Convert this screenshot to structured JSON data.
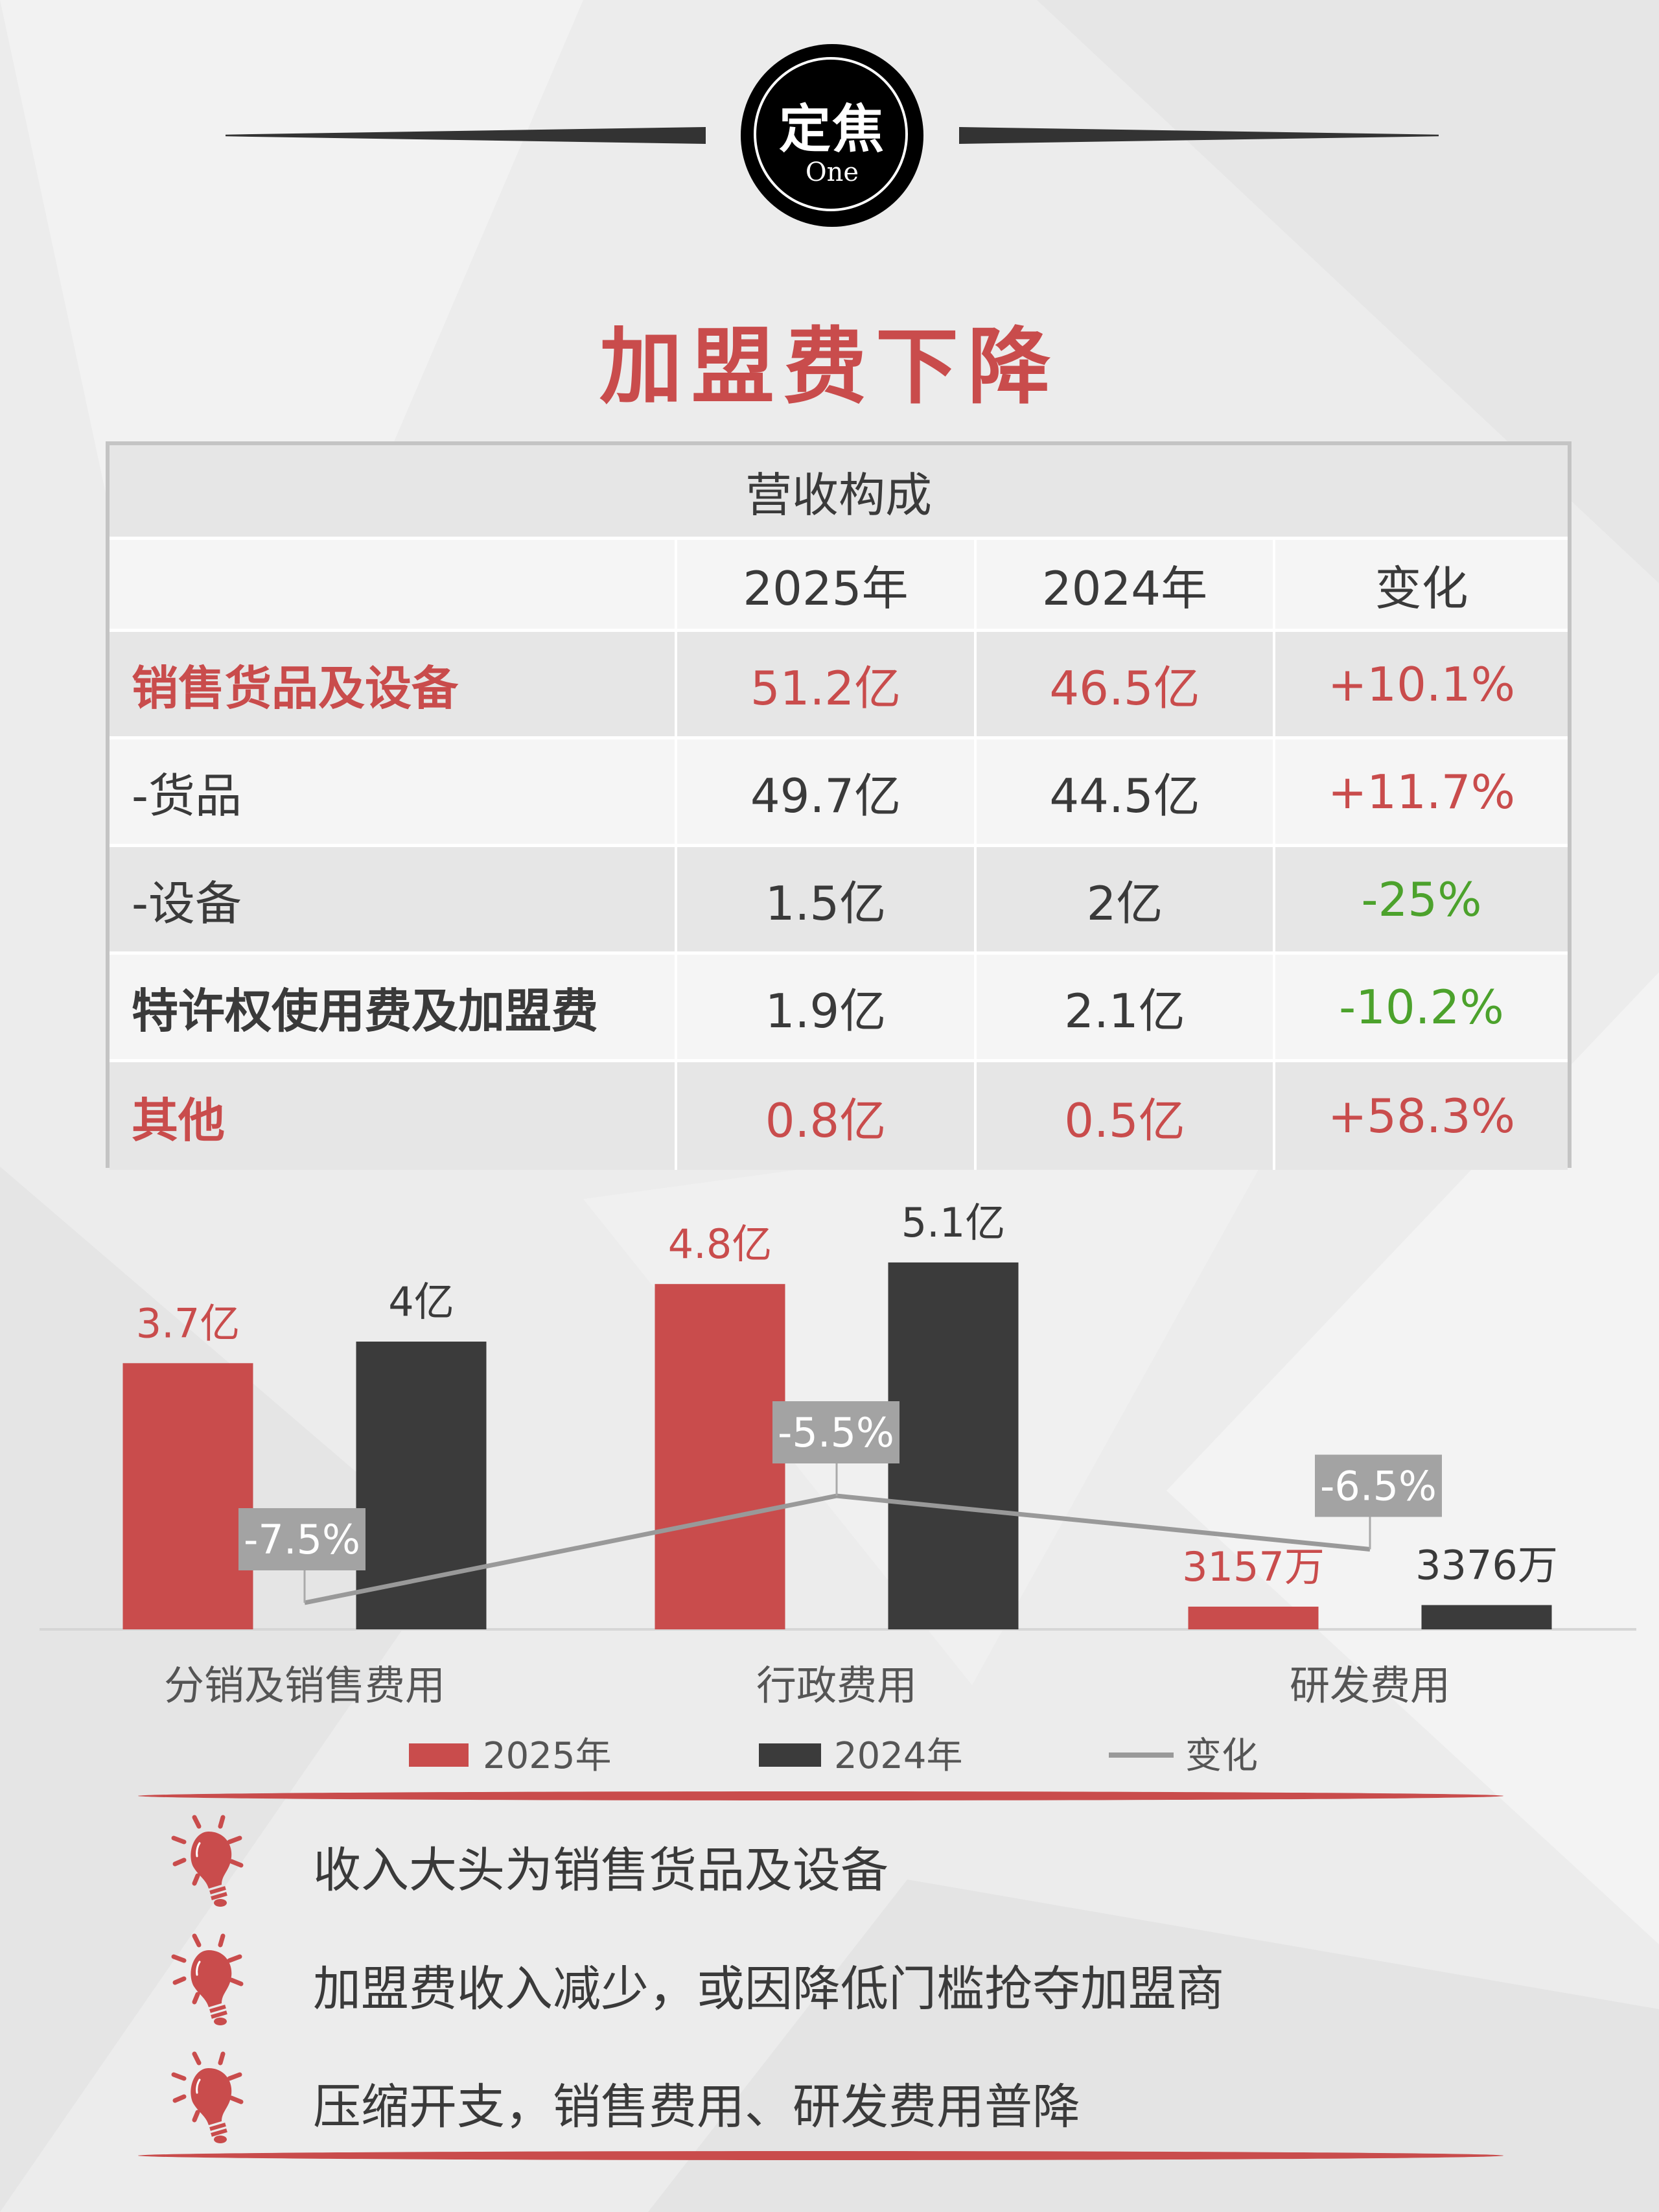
{
  "badge": {
    "main": "定焦",
    "sub": "One"
  },
  "title": "加盟费下降",
  "table": {
    "caption": "营收构成",
    "headers": [
      "",
      "2025年",
      "2024年",
      "变化"
    ],
    "rows": [
      {
        "label": "销售货品及设备",
        "y2025": "51.2亿",
        "y2024": "46.5亿",
        "change": "+10.1%",
        "highlight": true,
        "trend": "up"
      },
      {
        "label": "-货品",
        "y2025": "49.7亿",
        "y2024": "44.5亿",
        "change": "+11.7%",
        "highlight": false,
        "trend": "up"
      },
      {
        "label": "-设备",
        "y2025": "1.5亿",
        "y2024": "2亿",
        "change": "-25%",
        "highlight": false,
        "trend": "down"
      },
      {
        "label": "特许权使用费及加盟费",
        "y2025": "1.9亿",
        "y2024": "2.1亿",
        "change": "-10.2%",
        "highlight": false,
        "trend": "down",
        "bold": true
      },
      {
        "label": "其他",
        "y2025": "0.8亿",
        "y2024": "0.5亿",
        "change": "+58.3%",
        "highlight": true,
        "trend": "up"
      }
    ]
  },
  "chart_data": {
    "type": "bar",
    "categories": [
      "分销及销售费用",
      "行政费用",
      "研发费用"
    ],
    "series": [
      {
        "name": "2025年",
        "values": [
          3.7,
          4.8,
          0.3157
        ],
        "labels": [
          "3.7亿",
          "4.8亿",
          "3157万"
        ],
        "color": "#c94c4c",
        "unit": "亿"
      },
      {
        "name": "2024年",
        "values": [
          4.0,
          5.1,
          0.3376
        ],
        "labels": [
          "4亿",
          "5.1亿",
          "3376万"
        ],
        "color": "#3b3b3b",
        "unit": "亿"
      },
      {
        "name": "变化",
        "type": "line",
        "values": [
          -7.5,
          -5.5,
          -6.5
        ],
        "labels": [
          "-7.5%",
          "-5.5%",
          "-6.5%"
        ],
        "color": "#999999",
        "unit": "%"
      }
    ],
    "legend": "bottom",
    "grid": false
  },
  "bullets": [
    "收入大头为销售货品及设备",
    "加盟费收入减少，或因降低门槛抢夺加盟商",
    "压缩开支，销售费用、研发费用普降"
  ],
  "colors": {
    "accent": "#c94c4c",
    "dark": "#3b3b3b",
    "up": "#c94c4c",
    "down": "#4ca22c"
  }
}
